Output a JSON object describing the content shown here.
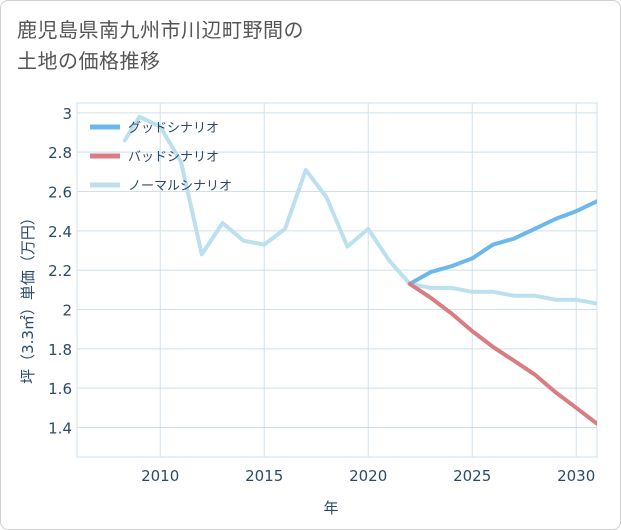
{
  "title_lines": [
    "鹿児島県南九州市川辺町野間の",
    "土地の価格推移"
  ],
  "colors": {
    "good": "#6cb8ec",
    "bad": "#d97d83",
    "normal": "#bde0ee",
    "grid": "#cfe0eb",
    "axis_text": "#2b4a6b",
    "title": "#555555"
  },
  "chart_data": {
    "type": "line",
    "title": "鹿児島県南九州市川辺町野間の土地の価格推移",
    "xlabel": "年",
    "ylabel": "坪（3.3㎡）単価（万円）",
    "xlim": [
      2006,
      2031
    ],
    "ylim": [
      1.25,
      3.05
    ],
    "xticks": [
      2010,
      2015,
      2020,
      2025,
      2030
    ],
    "yticks": [
      1.4,
      1.6,
      1.8,
      2.0,
      2.2,
      2.4,
      2.6,
      2.8,
      3.0
    ],
    "ytick_labels": [
      "1.4",
      "1.6",
      "1.8",
      "2",
      "2.2",
      "2.4",
      "2.6",
      "2.8",
      "3"
    ],
    "grid": true,
    "legend_position": "top-left",
    "series": [
      {
        "key": "good",
        "name": "グッドシナリオ",
        "x": [
          2022,
          2023,
          2024,
          2025,
          2026,
          2027,
          2028,
          2029,
          2030,
          2031
        ],
        "y": [
          2.13,
          2.19,
          2.22,
          2.26,
          2.33,
          2.36,
          2.41,
          2.46,
          2.5,
          2.55
        ]
      },
      {
        "key": "bad",
        "name": "バッドシナリオ",
        "x": [
          2022,
          2023,
          2024,
          2025,
          2026,
          2027,
          2028,
          2029,
          2030,
          2031
        ],
        "y": [
          2.13,
          2.06,
          1.98,
          1.89,
          1.81,
          1.74,
          1.67,
          1.58,
          1.5,
          1.42
        ]
      },
      {
        "key": "normal",
        "name": "ノーマルシナリオ",
        "x": [
          2008.3,
          2009,
          2010,
          2011,
          2012,
          2013,
          2014,
          2015,
          2016,
          2017,
          2018,
          2019,
          2020,
          2021,
          2022,
          2023,
          2024,
          2025,
          2026,
          2027,
          2028,
          2029,
          2030,
          2031
        ],
        "y": [
          2.86,
          2.98,
          2.93,
          2.75,
          2.28,
          2.44,
          2.35,
          2.33,
          2.41,
          2.71,
          2.57,
          2.32,
          2.41,
          2.25,
          2.13,
          2.11,
          2.11,
          2.09,
          2.09,
          2.07,
          2.07,
          2.05,
          2.05,
          2.03
        ]
      }
    ]
  }
}
